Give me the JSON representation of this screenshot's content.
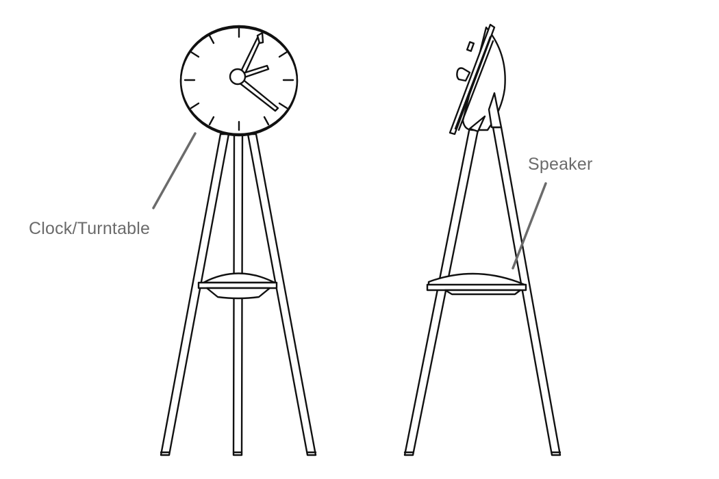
{
  "labels": {
    "clock_turntable": "Clock/Turntable",
    "speaker": "Speaker"
  },
  "colors": {
    "line_art": "#111111",
    "label_text": "#6b6b6b",
    "leader_line": "#6b6b6b",
    "background": "#ffffff"
  }
}
